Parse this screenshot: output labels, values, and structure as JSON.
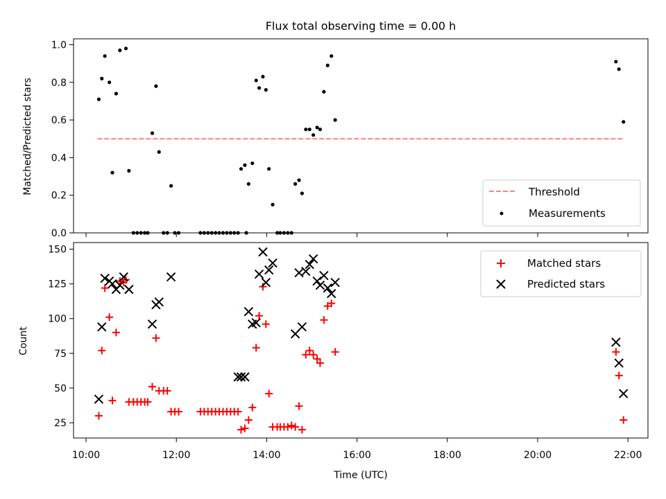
{
  "chart_data": [
    {
      "type": "scatter",
      "title": "Flux total observing time = 0.00 h",
      "xlabel": "",
      "ylabel": "Matched/Predicted stars",
      "xlim": [
        "10:00",
        "22:00"
      ],
      "ylim": [
        0,
        1.0
      ],
      "yticks": [
        "0.0",
        "0.2",
        "0.4",
        "0.6",
        "0.8",
        "1.0"
      ],
      "grid": false,
      "legend_position": "lower-right",
      "threshold": {
        "name": "Threshold",
        "value": 0.5,
        "x_start": "10:15",
        "x_end": "21:55",
        "color": "#ff7f7f",
        "style": "dashed"
      },
      "series": [
        {
          "name": "Measurements",
          "color": "#000000",
          "marker": "dot",
          "points": [
            [
              "10:17",
              0.71
            ],
            [
              "10:21",
              0.82
            ],
            [
              "10:25",
              0.94
            ],
            [
              "10:31",
              0.8
            ],
            [
              "10:35",
              0.32
            ],
            [
              "10:40",
              0.74
            ],
            [
              "10:45",
              0.97
            ],
            [
              "10:53",
              0.98
            ],
            [
              "10:57",
              0.33
            ],
            [
              "11:03",
              0.0
            ],
            [
              "11:08",
              0.0
            ],
            [
              "11:13",
              0.0
            ],
            [
              "11:18",
              0.0
            ],
            [
              "11:22",
              0.0
            ],
            [
              "11:28",
              0.53
            ],
            [
              "11:33",
              0.78
            ],
            [
              "11:37",
              0.43
            ],
            [
              "11:43",
              0.0
            ],
            [
              "11:48",
              0.0
            ],
            [
              "11:53",
              0.25
            ],
            [
              "11:58",
              0.0
            ],
            [
              "12:03",
              0.0
            ],
            [
              "12:32",
              0.0
            ],
            [
              "12:37",
              0.0
            ],
            [
              "12:42",
              0.0
            ],
            [
              "12:47",
              0.0
            ],
            [
              "12:52",
              0.0
            ],
            [
              "12:57",
              0.0
            ],
            [
              "13:02",
              0.0
            ],
            [
              "13:07",
              0.0
            ],
            [
              "13:12",
              0.0
            ],
            [
              "13:17",
              0.0
            ],
            [
              "13:22",
              0.0
            ],
            [
              "13:26",
              0.34
            ],
            [
              "13:31",
              0.36
            ],
            [
              "13:33",
              0.0
            ],
            [
              "13:36",
              0.26
            ],
            [
              "13:41",
              0.37
            ],
            [
              "13:46",
              0.81
            ],
            [
              "13:50",
              0.77
            ],
            [
              "13:55",
              0.83
            ],
            [
              "13:59",
              0.76
            ],
            [
              "14:03",
              0.34
            ],
            [
              "14:08",
              0.15
            ],
            [
              "14:14",
              0.0
            ],
            [
              "14:18",
              0.0
            ],
            [
              "14:23",
              0.0
            ],
            [
              "14:28",
              0.0
            ],
            [
              "14:33",
              0.0
            ],
            [
              "14:38",
              0.26
            ],
            [
              "14:43",
              0.28
            ],
            [
              "14:47",
              0.21
            ],
            [
              "14:52",
              0.55
            ],
            [
              "14:57",
              0.55
            ],
            [
              "15:02",
              0.52
            ],
            [
              "15:07",
              0.56
            ],
            [
              "15:11",
              0.55
            ],
            [
              "15:16",
              0.75
            ],
            [
              "15:21",
              0.89
            ],
            [
              "15:26",
              0.94
            ],
            [
              "15:31",
              0.6
            ],
            [
              "21:44",
              0.91
            ],
            [
              "21:48",
              0.87
            ],
            [
              "21:54",
              0.59
            ]
          ]
        }
      ]
    },
    {
      "type": "scatter",
      "title": "",
      "xlabel": "Time (UTC)",
      "ylabel": "Count",
      "xlim": [
        "10:00",
        "22:00"
      ],
      "xticks": [
        "10:00",
        "12:00",
        "14:00",
        "16:00",
        "18:00",
        "20:00",
        "22:00"
      ],
      "ylim": [
        13,
        154
      ],
      "yticks": [
        "25",
        "50",
        "75",
        "100",
        "125",
        "150"
      ],
      "grid": false,
      "legend_position": "top-right",
      "series": [
        {
          "name": "Matched stars",
          "color": "#ff0000",
          "marker": "plus",
          "points": [
            [
              "10:17",
              30
            ],
            [
              "10:21",
              77
            ],
            [
              "10:25",
              122
            ],
            [
              "10:31",
              101
            ],
            [
              "10:35",
              41
            ],
            [
              "10:40",
              90
            ],
            [
              "10:45",
              127
            ],
            [
              "10:50",
              126
            ],
            [
              "10:53",
              128
            ],
            [
              "10:57",
              40
            ],
            [
              "11:03",
              40
            ],
            [
              "11:08",
              40
            ],
            [
              "11:13",
              40
            ],
            [
              "11:18",
              40
            ],
            [
              "11:22",
              40
            ],
            [
              "11:28",
              51
            ],
            [
              "11:33",
              86
            ],
            [
              "11:37",
              48
            ],
            [
              "11:43",
              48
            ],
            [
              "11:48",
              48
            ],
            [
              "11:53",
              33
            ],
            [
              "11:58",
              33
            ],
            [
              "12:03",
              33
            ],
            [
              "12:32",
              33
            ],
            [
              "12:37",
              33
            ],
            [
              "12:42",
              33
            ],
            [
              "12:47",
              33
            ],
            [
              "12:52",
              33
            ],
            [
              "12:57",
              33
            ],
            [
              "13:02",
              33
            ],
            [
              "13:07",
              33
            ],
            [
              "13:12",
              33
            ],
            [
              "13:17",
              33
            ],
            [
              "13:22",
              33
            ],
            [
              "13:26",
              20
            ],
            [
              "13:31",
              21
            ],
            [
              "13:36",
              27
            ],
            [
              "13:41",
              36
            ],
            [
              "13:46",
              79
            ],
            [
              "13:50",
              102
            ],
            [
              "13:55",
              123
            ],
            [
              "13:59",
              96
            ],
            [
              "14:03",
              46
            ],
            [
              "14:08",
              22
            ],
            [
              "14:14",
              22
            ],
            [
              "14:18",
              22
            ],
            [
              "14:23",
              22
            ],
            [
              "14:28",
              22
            ],
            [
              "14:33",
              23
            ],
            [
              "14:38",
              22
            ],
            [
              "14:43",
              37
            ],
            [
              "14:47",
              20
            ],
            [
              "14:52",
              74
            ],
            [
              "14:57",
              77
            ],
            [
              "15:02",
              74
            ],
            [
              "15:07",
              71
            ],
            [
              "15:11",
              68
            ],
            [
              "15:16",
              99
            ],
            [
              "15:21",
              109
            ],
            [
              "15:26",
              111
            ],
            [
              "15:31",
              76
            ],
            [
              "21:44",
              76
            ],
            [
              "21:48",
              59
            ],
            [
              "21:54",
              27
            ]
          ]
        },
        {
          "name": "Predicted stars",
          "color": "#000000",
          "marker": "x",
          "points": [
            [
              "10:17",
              42
            ],
            [
              "10:21",
              94
            ],
            [
              "10:25",
              129
            ],
            [
              "10:31",
              127
            ],
            [
              "10:35",
              125
            ],
            [
              "10:40",
              121
            ],
            [
              "10:45",
              124
            ],
            [
              "10:50",
              130
            ],
            [
              "10:57",
              121
            ],
            [
              "11:28",
              96
            ],
            [
              "11:33",
              110
            ],
            [
              "11:37",
              112
            ],
            [
              "11:53",
              130
            ],
            [
              "13:22",
              58
            ],
            [
              "13:26",
              58
            ],
            [
              "13:31",
              58
            ],
            [
              "13:36",
              105
            ],
            [
              "13:41",
              96
            ],
            [
              "13:46",
              97
            ],
            [
              "13:50",
              132
            ],
            [
              "13:55",
              148
            ],
            [
              "13:59",
              126
            ],
            [
              "14:03",
              135
            ],
            [
              "14:08",
              140
            ],
            [
              "14:38",
              89
            ],
            [
              "14:43",
              133
            ],
            [
              "14:47",
              94
            ],
            [
              "14:52",
              134
            ],
            [
              "14:57",
              139
            ],
            [
              "15:02",
              143
            ],
            [
              "15:07",
              127
            ],
            [
              "15:11",
              124
            ],
            [
              "15:16",
              131
            ],
            [
              "15:21",
              122
            ],
            [
              "15:26",
              118
            ],
            [
              "15:31",
              126
            ],
            [
              "21:44",
              83
            ],
            [
              "21:48",
              68
            ],
            [
              "21:54",
              46
            ]
          ]
        }
      ]
    }
  ]
}
